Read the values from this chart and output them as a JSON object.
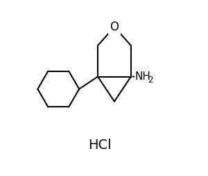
{
  "background_color": "#ffffff",
  "line_color": "#000000",
  "line_width": 1.5,
  "text_color": "#000000",
  "hcl_text": "HCl",
  "nh2_text": "NH",
  "nh2_sub": "2",
  "o_text": "O",
  "figsize": [
    3.0,
    2.54
  ],
  "dpi": 100,
  "xlim": [
    0,
    10
  ],
  "ylim": [
    0,
    8.5
  ]
}
